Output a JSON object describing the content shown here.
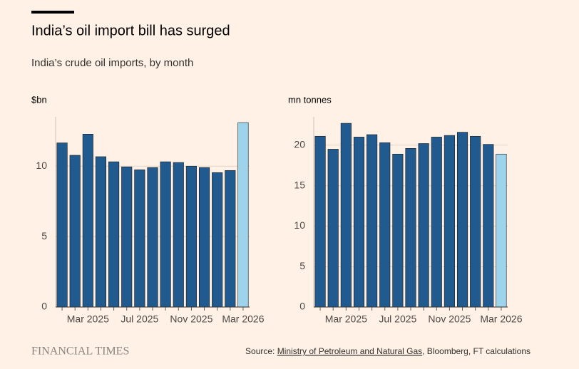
{
  "title": "India’s oil import bill has surged",
  "subtitle": "India’s crude oil imports, by month",
  "chart_data": [
    {
      "type": "bar",
      "y_label": "$bn",
      "categories": [
        null,
        null,
        "Mar 2025",
        null,
        null,
        null,
        "Jul 2025",
        null,
        null,
        null,
        "Nov 2025",
        null,
        null,
        null,
        "Mar 2026"
      ],
      "values": [
        11.65,
        10.77,
        12.27,
        10.67,
        10.31,
        9.95,
        9.74,
        9.9,
        10.31,
        10.26,
        10.0,
        9.9,
        9.54,
        9.69,
        13.09
      ],
      "colors": [
        "#215a8e",
        "#215a8e",
        "#215a8e",
        "#215a8e",
        "#215a8e",
        "#215a8e",
        "#215a8e",
        "#215a8e",
        "#215a8e",
        "#215a8e",
        "#215a8e",
        "#215a8e",
        "#215a8e",
        "#215a8e",
        "#9dd3eb"
      ],
      "ylim": [
        0,
        13.5
      ],
      "yticks": [
        0,
        5,
        10
      ],
      "grid": true
    },
    {
      "type": "bar",
      "y_label": "mn tonnes",
      "categories": [
        null,
        null,
        "Mar 2025",
        null,
        null,
        null,
        "Jul 2025",
        null,
        null,
        null,
        "Nov 2025",
        null,
        null,
        null,
        "Mar 2026"
      ],
      "values": [
        21.1,
        19.5,
        22.7,
        21.0,
        21.3,
        20.3,
        18.9,
        19.6,
        20.2,
        21.0,
        21.2,
        21.6,
        21.1,
        20.1,
        18.9
      ],
      "colors": [
        "#215a8e",
        "#215a8e",
        "#215a8e",
        "#215a8e",
        "#215a8e",
        "#215a8e",
        "#215a8e",
        "#215a8e",
        "#215a8e",
        "#215a8e",
        "#215a8e",
        "#215a8e",
        "#215a8e",
        "#215a8e",
        "#9dd3eb"
      ],
      "ylim": [
        0,
        23.5
      ],
      "yticks": [
        0,
        5,
        10,
        15,
        20
      ],
      "grid": true
    }
  ],
  "brand": "FINANCIAL TIMES",
  "source": {
    "prefix": "Source: ",
    "link": "Ministry of Petroleum and Natural Gas",
    "rest": ", Bloomberg, FT calculations"
  }
}
